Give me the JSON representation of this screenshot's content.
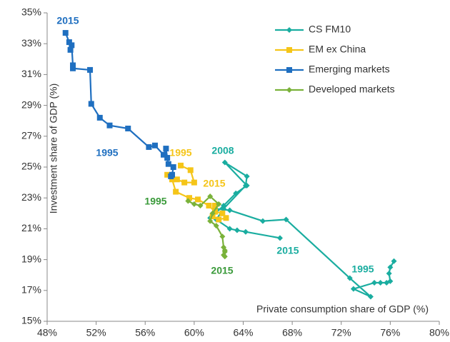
{
  "chart_data": {
    "type": "line",
    "xlabel": "Private consumption share of GDP (%)",
    "ylabel": "Investment share of GDP (%)",
    "xlim": [
      48,
      80
    ],
    "xticks": [
      {
        "value": 48,
        "label": "48%"
      },
      {
        "value": 52,
        "label": "52%"
      },
      {
        "value": 56,
        "label": "56%"
      },
      {
        "value": 60,
        "label": "60%"
      },
      {
        "value": 64,
        "label": "64%"
      },
      {
        "value": 68,
        "label": "68%"
      },
      {
        "value": 72,
        "label": "72%"
      },
      {
        "value": 76,
        "label": "76%"
      },
      {
        "value": 80,
        "label": "80%"
      }
    ],
    "ylim": [
      15,
      35
    ],
    "yticks": [
      {
        "value": 15,
        "label": "15%"
      },
      {
        "value": 17,
        "label": "17%"
      },
      {
        "value": 19,
        "label": "19%"
      },
      {
        "value": 21,
        "label": "21%"
      },
      {
        "value": 23,
        "label": "23%"
      },
      {
        "value": 25,
        "label": "25%"
      },
      {
        "value": 27,
        "label": "27%"
      },
      {
        "value": 29,
        "label": "29%"
      },
      {
        "value": 31,
        "label": "31%"
      },
      {
        "value": 33,
        "label": "33%"
      },
      {
        "value": 35,
        "label": "35%"
      }
    ],
    "legend": "upper right",
    "series": [
      {
        "name": "CS FM10",
        "color": "#1aada0",
        "marker": "diamond",
        "x": [
          76.3,
          76.0,
          75.9,
          76.0,
          75.7,
          75.2,
          74.7,
          73.0,
          74.4,
          72.7,
          67.5,
          65.6,
          62.9,
          61.7,
          61.3,
          62.4,
          63.4,
          64.3,
          62.5,
          64.3,
          64.2,
          62.4,
          61.8,
          62.9,
          63.5,
          64.2,
          67.0
        ],
        "values": [
          18.9,
          18.5,
          18.1,
          17.6,
          17.5,
          17.5,
          17.5,
          17.1,
          16.6,
          17.8,
          21.6,
          21.5,
          22.2,
          22.3,
          21.7,
          22.5,
          23.3,
          23.8,
          25.3,
          24.4,
          23.8,
          22.3,
          21.6,
          21.0,
          20.9,
          20.8,
          20.4
        ]
      },
      {
        "name": "EM ex China",
        "color": "#f5c518",
        "marker": "square",
        "x": [
          58.9,
          59.7,
          60.0,
          59.2,
          58.6,
          57.8,
          58.2,
          58.5,
          59.6,
          60.3,
          61.2,
          61.7,
          62.3,
          62.6,
          62.0,
          61.5,
          61.7
        ],
        "values": [
          25.1,
          24.8,
          24.0,
          24.0,
          24.2,
          24.5,
          24.2,
          23.4,
          23.0,
          22.9,
          22.5,
          22.1,
          22.0,
          21.7,
          21.6,
          21.8,
          22.5
        ]
      },
      {
        "name": "Emerging markets",
        "color": "#1f6fc0",
        "marker": "square",
        "x": [
          58.1,
          58.2,
          58.3,
          57.9,
          57.8,
          57.7,
          57.5,
          56.8,
          56.3,
          54.6,
          53.1,
          52.3,
          51.6,
          51.5,
          50.1,
          50.1,
          50.0,
          49.9,
          49.8,
          49.5
        ],
        "values": [
          24.4,
          24.5,
          25.0,
          25.2,
          25.6,
          26.2,
          25.8,
          26.4,
          26.3,
          27.5,
          27.7,
          28.2,
          29.1,
          31.3,
          31.4,
          31.6,
          32.9,
          32.6,
          33.1,
          33.7
        ]
      },
      {
        "name": "Developed markets",
        "color": "#7ab23a",
        "marker": "diamond",
        "x": [
          59.5,
          60.0,
          60.5,
          61.3,
          62.0,
          61.5,
          61.3,
          61.8,
          62.3,
          62.4,
          62.5,
          62.4,
          62.5,
          62.5
        ],
        "values": [
          22.8,
          22.6,
          22.5,
          23.1,
          22.6,
          22.0,
          21.5,
          21.2,
          20.5,
          19.8,
          19.5,
          19.3,
          19.2,
          19.6
        ]
      }
    ],
    "annotations": [
      {
        "text": "2015",
        "color": "#1f6fc0"
      },
      {
        "text": "1995",
        "color": "#1f6fc0"
      },
      {
        "text": "1995",
        "color": "#f5c518"
      },
      {
        "text": "2015",
        "color": "#f5c518"
      },
      {
        "text": "2008",
        "color": "#1aada0"
      },
      {
        "text": "1995",
        "color": "#3a9a3a"
      },
      {
        "text": "2015",
        "color": "#1aada0"
      },
      {
        "text": "2015",
        "color": "#3a9a3a"
      },
      {
        "text": "1995",
        "color": "#1aada0"
      }
    ]
  }
}
